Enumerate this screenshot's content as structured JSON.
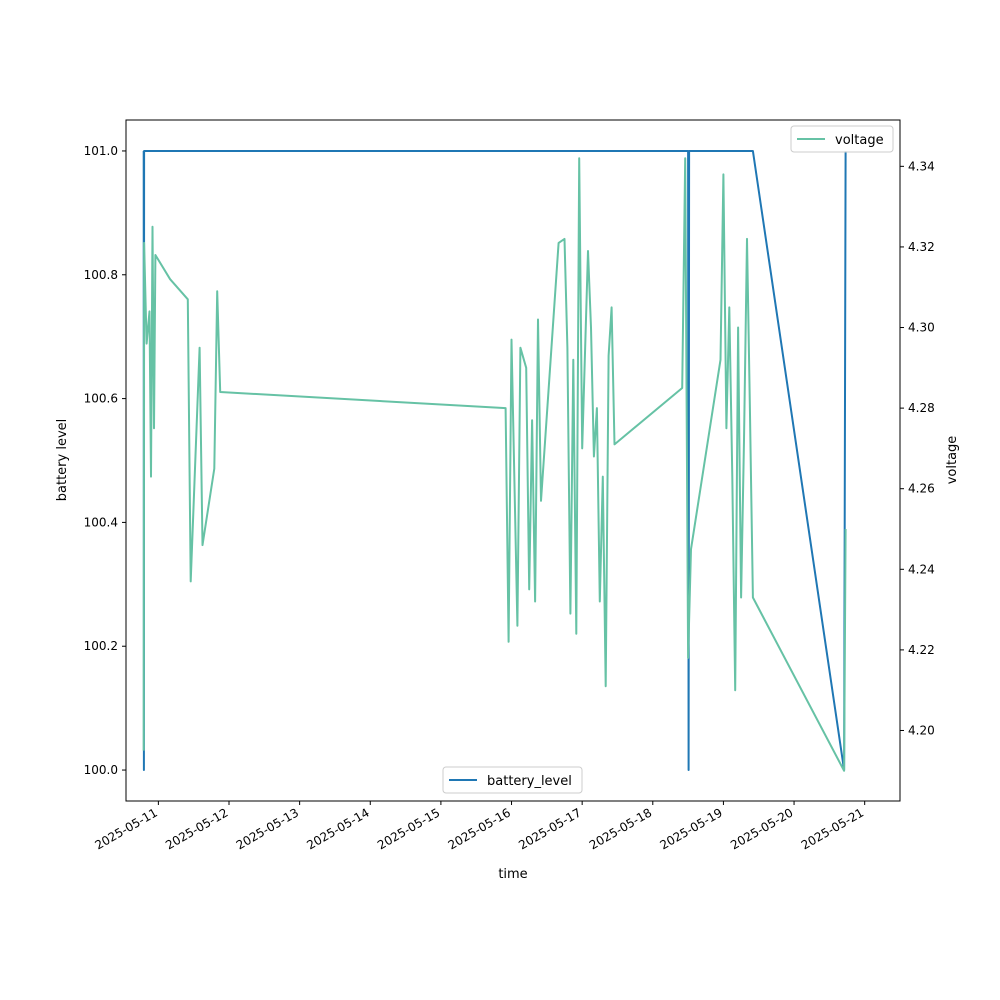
{
  "chart_data": {
    "type": "line",
    "xlabel": "time",
    "x_ticks": [
      "2025-05-11",
      "2025-05-12",
      "2025-05-13",
      "2025-05-14",
      "2025-05-15",
      "2025-05-16",
      "2025-05-17",
      "2025-05-18",
      "2025-05-19",
      "2025-05-20",
      "2025-05-21"
    ],
    "y_left": {
      "label": "battery level",
      "lim": [
        99.95,
        101.05
      ],
      "ticks": [
        "100.0",
        "100.2",
        "100.4",
        "100.6",
        "100.8",
        "101.0"
      ]
    },
    "y_right": {
      "label": "voltage",
      "lim": [
        4.1825,
        4.3515
      ],
      "ticks": [
        "4.20",
        "4.22",
        "4.24",
        "4.26",
        "4.28",
        "4.30",
        "4.32",
        "4.34"
      ]
    },
    "x_range": [
      "2025-05-10 13:00",
      "2025-05-21 12:00"
    ],
    "legends": [
      {
        "position": "lower-center",
        "label": "battery_level",
        "color": "#1f77b4"
      },
      {
        "position": "upper-right",
        "label": "voltage",
        "color": "#66c2a5"
      }
    ],
    "series": [
      {
        "name": "battery_level",
        "axis": "left",
        "color": "#1f77b4",
        "points": [
          [
            "2025-05-10 19:00",
            101.0
          ],
          [
            "2025-05-10 19:05",
            100.0
          ],
          [
            "2025-05-10 19:10",
            101.0
          ],
          [
            "2025-05-18 12:00",
            101.0
          ],
          [
            "2025-05-18 12:10",
            100.0
          ],
          [
            "2025-05-18 12:20",
            101.0
          ],
          [
            "2025-05-19 10:00",
            101.0
          ],
          [
            "2025-05-20 17:00",
            100.0
          ],
          [
            "2025-05-20 17:30",
            101.0
          ]
        ]
      },
      {
        "name": "voltage",
        "axis": "right",
        "color": "#66c2a5",
        "points": [
          [
            "2025-05-10 19:00",
            4.195
          ],
          [
            "2025-05-10 19:10",
            4.321
          ],
          [
            "2025-05-10 20:00",
            4.296
          ],
          [
            "2025-05-10 21:00",
            4.304
          ],
          [
            "2025-05-10 21:30",
            4.263
          ],
          [
            "2025-05-10 22:00",
            4.325
          ],
          [
            "2025-05-10 22:30",
            4.275
          ],
          [
            "2025-05-10 23:00",
            4.318
          ],
          [
            "2025-05-11 04:00",
            4.312
          ],
          [
            "2025-05-11 10:00",
            4.307
          ],
          [
            "2025-05-11 11:00",
            4.237
          ],
          [
            "2025-05-11 14:00",
            4.295
          ],
          [
            "2025-05-11 15:00",
            4.246
          ],
          [
            "2025-05-11 19:00",
            4.265
          ],
          [
            "2025-05-11 20:00",
            4.309
          ],
          [
            "2025-05-11 21:00",
            4.284
          ],
          [
            "2025-05-15 22:00",
            4.28
          ],
          [
            "2025-05-15 23:00",
            4.222
          ],
          [
            "2025-05-16 00:00",
            4.297
          ],
          [
            "2025-05-16 02:00",
            4.226
          ],
          [
            "2025-05-16 03:00",
            4.295
          ],
          [
            "2025-05-16 05:00",
            4.29
          ],
          [
            "2025-05-16 06:00",
            4.235
          ],
          [
            "2025-05-16 07:00",
            4.277
          ],
          [
            "2025-05-16 08:00",
            4.232
          ],
          [
            "2025-05-16 09:00",
            4.302
          ],
          [
            "2025-05-16 10:00",
            4.257
          ],
          [
            "2025-05-16 16:00",
            4.321
          ],
          [
            "2025-05-16 18:00",
            4.322
          ],
          [
            "2025-05-16 19:00",
            4.295
          ],
          [
            "2025-05-16 20:00",
            4.229
          ],
          [
            "2025-05-16 21:00",
            4.292
          ],
          [
            "2025-05-16 22:00",
            4.224
          ],
          [
            "2025-05-16 23:00",
            4.342
          ],
          [
            "2025-05-17 00:00",
            4.27
          ],
          [
            "2025-05-17 02:00",
            4.319
          ],
          [
            "2025-05-17 03:00",
            4.3
          ],
          [
            "2025-05-17 04:00",
            4.268
          ],
          [
            "2025-05-17 05:00",
            4.28
          ],
          [
            "2025-05-17 06:00",
            4.232
          ],
          [
            "2025-05-17 07:00",
            4.263
          ],
          [
            "2025-05-17 08:00",
            4.211
          ],
          [
            "2025-05-17 09:00",
            4.293
          ],
          [
            "2025-05-17 10:00",
            4.305
          ],
          [
            "2025-05-17 11:00",
            4.271
          ],
          [
            "2025-05-18 10:00",
            4.285
          ],
          [
            "2025-05-18 11:00",
            4.342
          ],
          [
            "2025-05-18 12:00",
            4.218
          ],
          [
            "2025-05-18 13:00",
            4.245
          ],
          [
            "2025-05-18 23:00",
            4.292
          ],
          [
            "2025-05-19 00:00",
            4.338
          ],
          [
            "2025-05-19 01:00",
            4.275
          ],
          [
            "2025-05-19 02:00",
            4.305
          ],
          [
            "2025-05-19 03:00",
            4.263
          ],
          [
            "2025-05-19 04:00",
            4.21
          ],
          [
            "2025-05-19 05:00",
            4.3
          ],
          [
            "2025-05-19 06:00",
            4.233
          ],
          [
            "2025-05-19 07:00",
            4.272
          ],
          [
            "2025-05-19 08:00",
            4.322
          ],
          [
            "2025-05-19 09:00",
            4.28
          ],
          [
            "2025-05-19 10:00",
            4.233
          ],
          [
            "2025-05-20 17:00",
            4.19
          ],
          [
            "2025-05-20 17:30",
            4.25
          ]
        ]
      }
    ]
  }
}
